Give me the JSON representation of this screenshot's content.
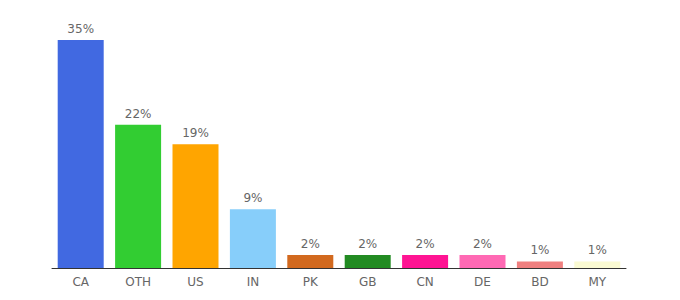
{
  "chart_data": {
    "type": "bar",
    "categories": [
      "CA",
      "OTH",
      "US",
      "IN",
      "PK",
      "GB",
      "CN",
      "DE",
      "BD",
      "MY"
    ],
    "values": [
      35,
      22,
      19,
      9,
      2,
      2,
      2,
      2,
      1,
      1
    ],
    "value_labels": [
      "35%",
      "22%",
      "19%",
      "9%",
      "2%",
      "2%",
      "2%",
      "2%",
      "1%",
      "1%"
    ],
    "colors": [
      "#4169e1",
      "#32cd32",
      "#ffa500",
      "#87cefa",
      "#d2691e",
      "#228b22",
      "#ff1493",
      "#ff69b4",
      "#f08080",
      "#fafad2"
    ],
    "ylim": [
      0,
      35
    ],
    "data_labels": true,
    "tick_labels": "x",
    "grid": false
  }
}
